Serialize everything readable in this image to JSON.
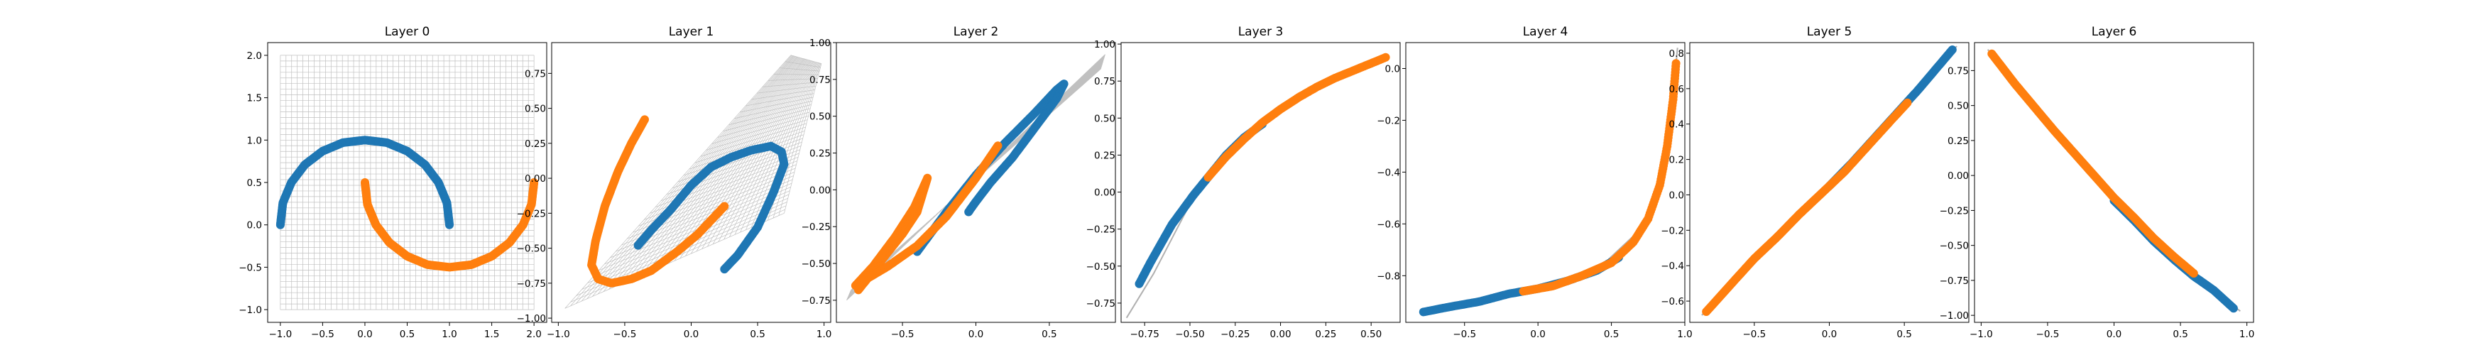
{
  "chart_data": [
    {
      "type": "scatter",
      "title": "Layer 0",
      "xlim": [
        -1.15,
        2.15
      ],
      "ylim": [
        -1.15,
        2.15
      ],
      "xticks": [
        -1.0,
        -0.5,
        0.0,
        0.5,
        1.0,
        1.5,
        2.0
      ],
      "xtick_labels": [
        "−1.0",
        "−0.5",
        "0.0",
        "0.5",
        "1.0",
        "1.5",
        "2.0"
      ],
      "yticks": [
        -1.0,
        -0.5,
        0.0,
        0.5,
        1.0,
        1.5,
        2.0
      ],
      "ytick_labels": [
        "−1.0",
        "−0.5",
        "0.0",
        "0.5",
        "1.0",
        "1.5",
        "2.0"
      ],
      "grid": {
        "shape": "square-mesh",
        "x_range": [
          -1.0,
          2.0
        ],
        "y_range": [
          -1.0,
          2.0
        ]
      },
      "series": [
        {
          "color": "#1f77b4",
          "points": [
            [
              -1.0,
              0.0
            ],
            [
              -0.97,
              0.26
            ],
            [
              -0.87,
              0.5
            ],
            [
              -0.71,
              0.71
            ],
            [
              -0.5,
              0.87
            ],
            [
              -0.26,
              0.97
            ],
            [
              0.0,
              1.0
            ],
            [
              0.26,
              0.97
            ],
            [
              0.5,
              0.87
            ],
            [
              0.71,
              0.71
            ],
            [
              0.87,
              0.5
            ],
            [
              0.97,
              0.26
            ],
            [
              1.0,
              0.0
            ]
          ]
        },
        {
          "color": "#ff7f0e",
          "points": [
            [
              0.0,
              0.5
            ],
            [
              0.03,
              0.24
            ],
            [
              0.13,
              0.0
            ],
            [
              0.29,
              -0.21
            ],
            [
              0.5,
              -0.37
            ],
            [
              0.74,
              -0.47
            ],
            [
              1.0,
              -0.5
            ],
            [
              1.26,
              -0.47
            ],
            [
              1.5,
              -0.37
            ],
            [
              1.71,
              -0.21
            ],
            [
              1.87,
              0.0
            ],
            [
              1.97,
              0.24
            ],
            [
              2.0,
              0.5
            ]
          ]
        }
      ]
    },
    {
      "type": "scatter",
      "title": "Layer 1",
      "xlim": [
        -1.05,
        1.05
      ],
      "ylim": [
        -1.03,
        0.97
      ],
      "xticks": [
        -1.0,
        -0.5,
        0.0,
        0.5,
        1.0
      ],
      "xtick_labels": [
        "−1.0",
        "−0.5",
        "0.0",
        "0.5",
        "1.0"
      ],
      "yticks": [
        -1.0,
        -0.75,
        -0.5,
        -0.25,
        0.0,
        0.25,
        0.5,
        0.75
      ],
      "ytick_labels": [
        "−1.00",
        "−0.75",
        "−0.50",
        "−0.25",
        "0.00",
        "0.25",
        "0.50",
        "0.75"
      ],
      "grid": {
        "shape": "warped-mesh",
        "corners": [
          [
            -0.95,
            -0.93
          ],
          [
            0.75,
            0.88
          ],
          [
            0.98,
            0.82
          ],
          [
            0.7,
            -0.25
          ]
        ]
      },
      "series": [
        {
          "color": "#1f77b4",
          "points": [
            [
              -0.4,
              -0.48
            ],
            [
              -0.3,
              -0.37
            ],
            [
              -0.15,
              -0.22
            ],
            [
              0.0,
              -0.05
            ],
            [
              0.15,
              0.08
            ],
            [
              0.3,
              0.15
            ],
            [
              0.45,
              0.2
            ],
            [
              0.6,
              0.23
            ],
            [
              0.68,
              0.19
            ],
            [
              0.7,
              0.1
            ],
            [
              0.62,
              -0.1
            ],
            [
              0.5,
              -0.35
            ],
            [
              0.35,
              -0.55
            ],
            [
              0.25,
              -0.65
            ]
          ]
        },
        {
          "color": "#ff7f0e",
          "points": [
            [
              -0.35,
              0.42
            ],
            [
              -0.45,
              0.25
            ],
            [
              -0.55,
              0.05
            ],
            [
              -0.65,
              -0.2
            ],
            [
              -0.72,
              -0.45
            ],
            [
              -0.75,
              -0.62
            ],
            [
              -0.7,
              -0.72
            ],
            [
              -0.6,
              -0.75
            ],
            [
              -0.45,
              -0.72
            ],
            [
              -0.3,
              -0.66
            ],
            [
              -0.1,
              -0.52
            ],
            [
              0.05,
              -0.4
            ],
            [
              0.15,
              -0.3
            ],
            [
              0.25,
              -0.2
            ]
          ]
        }
      ]
    },
    {
      "type": "scatter",
      "title": "Layer 2",
      "xlim": [
        -0.95,
        0.95
      ],
      "ylim": [
        -0.9,
        1.0
      ],
      "xticks": [
        -0.5,
        0.0,
        0.5
      ],
      "xtick_labels": [
        "−0.5",
        "0.0",
        "0.5"
      ],
      "yticks": [
        -0.75,
        -0.5,
        -0.25,
        0.0,
        0.25,
        0.5,
        0.75,
        1.0
      ],
      "ytick_labels": [
        "−0.75",
        "−0.50",
        "−0.25",
        "0.00",
        "0.25",
        "0.50",
        "0.75",
        "1.00"
      ],
      "grid": {
        "shape": "warped-mesh",
        "corners": [
          [
            -0.88,
            -0.75
          ],
          [
            0.88,
            0.92
          ],
          [
            0.85,
            0.82
          ],
          [
            -0.85,
            -0.68
          ]
        ]
      },
      "series": [
        {
          "color": "#1f77b4",
          "points": [
            [
              -0.4,
              -0.42
            ],
            [
              -0.2,
              -0.15
            ],
            [
              0.0,
              0.1
            ],
            [
              0.2,
              0.32
            ],
            [
              0.4,
              0.52
            ],
            [
              0.55,
              0.68
            ],
            [
              0.6,
              0.72
            ],
            [
              0.55,
              0.62
            ],
            [
              0.4,
              0.42
            ],
            [
              0.25,
              0.22
            ],
            [
              0.1,
              0.05
            ],
            [
              0.0,
              -0.08
            ],
            [
              -0.05,
              -0.15
            ]
          ]
        },
        {
          "color": "#ff7f0e",
          "points": [
            [
              -0.8,
              -0.68
            ],
            [
              -0.72,
              -0.58
            ],
            [
              -0.62,
              -0.45
            ],
            [
              -0.5,
              -0.3
            ],
            [
              -0.4,
              -0.15
            ],
            [
              -0.33,
              0.08
            ],
            [
              -0.42,
              -0.12
            ],
            [
              -0.55,
              -0.32
            ],
            [
              -0.7,
              -0.52
            ],
            [
              -0.82,
              -0.65
            ],
            [
              -0.6,
              -0.52
            ],
            [
              -0.4,
              -0.38
            ],
            [
              -0.2,
              -0.18
            ],
            [
              0.0,
              0.08
            ],
            [
              0.15,
              0.3
            ]
          ]
        }
      ]
    },
    {
      "type": "scatter",
      "title": "Layer 3",
      "xlim": [
        -0.88,
        0.66
      ],
      "ylim": [
        -0.88,
        1.01
      ],
      "xticks": [
        -0.75,
        -0.5,
        -0.25,
        0.0,
        0.25,
        0.5
      ],
      "xtick_labels": [
        "−0.75",
        "−0.50",
        "−0.25",
        "0.00",
        "0.25",
        "0.50"
      ],
      "yticks": [
        -0.75,
        -0.5,
        -0.25,
        0.0,
        0.25,
        0.5,
        0.75,
        1.0
      ],
      "ytick_labels": [
        "−0.75",
        "−0.50",
        "−0.25",
        "0.00",
        "0.25",
        "0.50",
        "0.75",
        "1.00"
      ],
      "grid": {
        "shape": "curve",
        "points": [
          [
            -0.85,
            -0.85
          ],
          [
            -0.7,
            -0.55
          ],
          [
            -0.5,
            -0.08
          ],
          [
            -0.25,
            0.3
          ],
          [
            0.0,
            0.55
          ],
          [
            0.3,
            0.77
          ],
          [
            0.6,
            0.92
          ]
        ]
      },
      "series": [
        {
          "color": "#1f77b4",
          "points": [
            [
              -0.78,
              -0.62
            ],
            [
              -0.72,
              -0.48
            ],
            [
              -0.66,
              -0.35
            ],
            [
              -0.6,
              -0.22
            ],
            [
              -0.54,
              -0.12
            ],
            [
              -0.48,
              -0.02
            ],
            [
              -0.4,
              0.1
            ],
            [
              -0.3,
              0.25
            ],
            [
              -0.2,
              0.37
            ],
            [
              -0.1,
              0.46
            ]
          ]
        },
        {
          "color": "#ff7f0e",
          "points": [
            [
              -0.4,
              0.1
            ],
            [
              -0.3,
              0.24
            ],
            [
              -0.2,
              0.36
            ],
            [
              -0.1,
              0.47
            ],
            [
              0.0,
              0.56
            ],
            [
              0.1,
              0.64
            ],
            [
              0.2,
              0.71
            ],
            [
              0.3,
              0.77
            ],
            [
              0.4,
              0.82
            ],
            [
              0.5,
              0.87
            ],
            [
              0.58,
              0.91
            ]
          ]
        }
      ]
    },
    {
      "type": "scatter",
      "title": "Layer 4",
      "xlim": [
        -0.9,
        1.0
      ],
      "ylim": [
        -0.98,
        0.1
      ],
      "xticks": [
        -0.5,
        0.0,
        0.5,
        1.0
      ],
      "xtick_labels": [
        "−0.5",
        "0.0",
        "0.5",
        "1.0"
      ],
      "yticks": [
        -0.8,
        -0.6,
        -0.4,
        -0.2,
        0.0
      ],
      "ytick_labels": [
        "−0.8",
        "−0.6",
        "−0.4",
        "−0.2",
        "0.0"
      ],
      "grid": {
        "shape": "curve",
        "points": [
          [
            -0.8,
            -0.95
          ],
          [
            -0.4,
            -0.9
          ],
          [
            0.0,
            -0.85
          ],
          [
            0.4,
            -0.78
          ],
          [
            0.7,
            -0.62
          ],
          [
            0.85,
            -0.4
          ],
          [
            0.92,
            -0.1
          ],
          [
            0.95,
            0.08
          ]
        ]
      },
      "series": [
        {
          "color": "#1f77b4",
          "points": [
            [
              -0.78,
              -0.94
            ],
            [
              -0.6,
              -0.92
            ],
            [
              -0.4,
              -0.9
            ],
            [
              -0.2,
              -0.87
            ],
            [
              0.0,
              -0.85
            ],
            [
              0.2,
              -0.82
            ],
            [
              0.4,
              -0.78
            ],
            [
              0.55,
              -0.73
            ]
          ]
        },
        {
          "color": "#ff7f0e",
          "points": [
            [
              -0.1,
              -0.86
            ],
            [
              0.1,
              -0.84
            ],
            [
              0.3,
              -0.8
            ],
            [
              0.5,
              -0.75
            ],
            [
              0.65,
              -0.67
            ],
            [
              0.75,
              -0.58
            ],
            [
              0.83,
              -0.45
            ],
            [
              0.88,
              -0.3
            ],
            [
              0.92,
              -0.12
            ],
            [
              0.94,
              0.02
            ]
          ]
        }
      ]
    },
    {
      "type": "scatter",
      "title": "Layer 5",
      "xlim": [
        -0.93,
        0.93
      ],
      "ylim": [
        -0.72,
        0.86
      ],
      "xticks": [
        -0.5,
        0.0,
        0.5
      ],
      "xtick_labels": [
        "−0.5",
        "0.0",
        "0.5"
      ],
      "yticks": [
        -0.6,
        -0.4,
        -0.2,
        0.0,
        0.2,
        0.4,
        0.6,
        0.8
      ],
      "ytick_labels": [
        "−0.6",
        "−0.4",
        "−0.2",
        "0.0",
        "0.2",
        "0.4",
        "0.6",
        "0.8"
      ],
      "grid": {
        "shape": "curve",
        "points": [
          [
            -0.85,
            -0.68
          ],
          [
            -0.4,
            -0.28
          ],
          [
            0.0,
            0.05
          ],
          [
            0.4,
            0.42
          ],
          [
            0.85,
            0.84
          ]
        ]
      },
      "series": [
        {
          "color": "#1f77b4",
          "points": [
            [
              0.0,
              0.05
            ],
            [
              0.15,
              0.18
            ],
            [
              0.3,
              0.32
            ],
            [
              0.45,
              0.46
            ],
            [
              0.6,
              0.6
            ],
            [
              0.72,
              0.72
            ],
            [
              0.82,
              0.82
            ]
          ]
        },
        {
          "color": "#ff7f0e",
          "points": [
            [
              -0.82,
              -0.66
            ],
            [
              -0.65,
              -0.5
            ],
            [
              -0.5,
              -0.36
            ],
            [
              -0.35,
              -0.24
            ],
            [
              -0.2,
              -0.11
            ],
            [
              -0.05,
              0.01
            ],
            [
              0.1,
              0.13
            ],
            [
              0.25,
              0.27
            ],
            [
              0.4,
              0.41
            ],
            [
              0.52,
              0.52
            ]
          ]
        }
      ]
    },
    {
      "type": "scatter",
      "title": "Layer 6",
      "xlim": [
        -1.05,
        1.05
      ],
      "ylim": [
        -1.05,
        0.95
      ],
      "xticks": [
        -1.0,
        -0.5,
        0.0,
        0.5,
        1.0
      ],
      "xtick_labels": [
        "−1.0",
        "−0.5",
        "0.0",
        "0.5",
        "1.0"
      ],
      "yticks": [
        -1.0,
        -0.75,
        -0.5,
        -0.25,
        0.0,
        0.25,
        0.5,
        0.75
      ],
      "ytick_labels": [
        "−1.00",
        "−0.75",
        "−0.50",
        "−0.25",
        "0.00",
        "0.25",
        "0.50",
        "0.75"
      ],
      "grid": {
        "shape": "curve",
        "points": [
          [
            -0.95,
            0.9
          ],
          [
            -0.5,
            0.38
          ],
          [
            0.0,
            -0.18
          ],
          [
            0.5,
            -0.65
          ],
          [
            0.95,
            -0.97
          ]
        ]
      },
      "series": [
        {
          "color": "#1f77b4",
          "points": [
            [
              0.0,
              -0.18
            ],
            [
              0.15,
              -0.32
            ],
            [
              0.3,
              -0.47
            ],
            [
              0.45,
              -0.6
            ],
            [
              0.6,
              -0.72
            ],
            [
              0.75,
              -0.82
            ],
            [
              0.9,
              -0.95
            ]
          ]
        },
        {
          "color": "#ff7f0e",
          "points": [
            [
              -0.92,
              0.87
            ],
            [
              -0.75,
              0.66
            ],
            [
              -0.6,
              0.49
            ],
            [
              -0.45,
              0.32
            ],
            [
              -0.3,
              0.16
            ],
            [
              -0.15,
              0.0
            ],
            [
              0.0,
              -0.16
            ],
            [
              0.15,
              -0.3
            ],
            [
              0.3,
              -0.45
            ],
            [
              0.45,
              -0.58
            ],
            [
              0.6,
              -0.7
            ]
          ]
        }
      ]
    }
  ]
}
